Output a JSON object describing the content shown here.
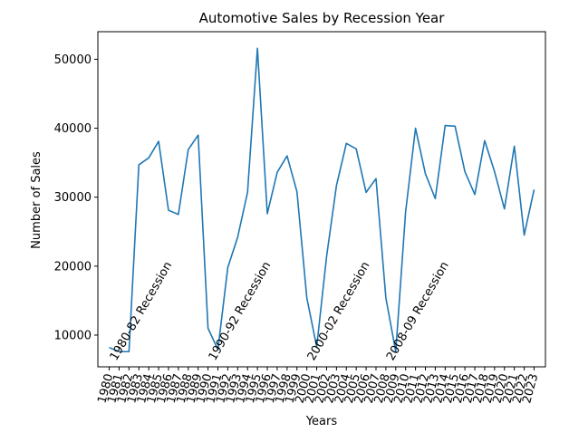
{
  "chart_data": {
    "type": "line",
    "title": "Automotive Sales by Recession Year",
    "xlabel": "Years",
    "ylabel": "Number of Sales",
    "x": [
      1980,
      1981,
      1982,
      1983,
      1984,
      1985,
      1986,
      1987,
      1988,
      1989,
      1990,
      1991,
      1992,
      1993,
      1994,
      1995,
      1996,
      1997,
      1998,
      1999,
      2000,
      2001,
      2002,
      2003,
      2004,
      2005,
      2006,
      2007,
      2008,
      2009,
      2010,
      2011,
      2012,
      2013,
      2014,
      2015,
      2016,
      2017,
      2018,
      2019,
      2020,
      2021,
      2022,
      2023
    ],
    "series": [
      {
        "values": [
          8200,
          7600,
          7600,
          34700,
          35700,
          38100,
          28100,
          27500,
          36900,
          39000,
          11000,
          7900,
          19800,
          24200,
          30700,
          51600,
          27600,
          33600,
          36000,
          30800,
          15400,
          8300,
          21400,
          31700,
          37800,
          37000,
          30700,
          32700,
          15400,
          7600,
          27900,
          40000,
          33400,
          29800,
          40400,
          40300,
          33700,
          30400,
          38200,
          33700,
          28300,
          37400,
          24500,
          31100
        ]
      }
    ],
    "xlim": [
      1978.85,
      2024.15
    ],
    "ylim": [
      5400,
      54000
    ],
    "yticks": [
      10000,
      20000,
      30000,
      40000,
      50000
    ],
    "grid": false,
    "line_color": "#1f77b4",
    "annotations": [
      {
        "text": "1980-82 Recession",
        "x": 1980.7,
        "y": 6200
      },
      {
        "text": "1990-92 Recession",
        "x": 1990.7,
        "y": 6200
      },
      {
        "text": "2000-02 Recession",
        "x": 2000.7,
        "y": 6200
      },
      {
        "text": "2008-09 Recession",
        "x": 2008.7,
        "y": 6200
      }
    ]
  }
}
